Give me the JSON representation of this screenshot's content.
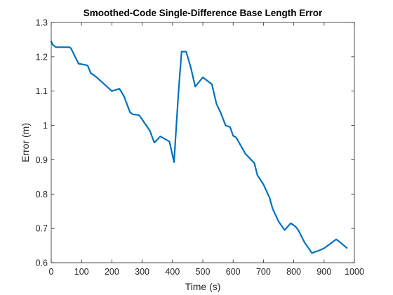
{
  "chart_data": {
    "type": "line",
    "title": "Smoothed-Code Single-Difference Base Length Error",
    "xlabel": "Time (s)",
    "ylabel": "Error (m)",
    "xlim": [
      0,
      1000
    ],
    "ylim": [
      0.6,
      1.3
    ],
    "xticks": [
      0,
      100,
      200,
      300,
      400,
      500,
      600,
      700,
      800,
      900,
      1000
    ],
    "yticks": [
      0.6,
      0.7,
      0.8,
      0.9,
      1.0,
      1.1,
      1.2,
      1.3
    ],
    "xtick_labels": [
      "0",
      "100",
      "200",
      "300",
      "400",
      "500",
      "600",
      "700",
      "800",
      "900",
      "1000"
    ],
    "ytick_labels": [
      "0.6",
      "0.7",
      "0.8",
      "0.9",
      "1",
      "1.1",
      "1.2",
      "1.3"
    ],
    "grid": false,
    "line_color": "#0072BD",
    "series": [
      {
        "x": [
          0,
          5,
          15,
          30,
          45,
          60,
          65,
          90,
          120,
          130,
          150,
          200,
          225,
          240,
          260,
          270,
          290,
          325,
          340,
          360,
          380,
          390,
          405,
          420,
          430,
          445,
          460,
          475,
          500,
          530,
          545,
          560,
          575,
          590,
          600,
          610,
          640,
          670,
          680,
          700,
          720,
          730,
          750,
          770,
          790,
          805,
          815,
          835,
          860,
          875,
          885,
          900,
          940,
          955,
          975
        ],
        "y": [
          1.245,
          1.235,
          1.228,
          1.228,
          1.228,
          1.228,
          1.225,
          1.18,
          1.175,
          1.153,
          1.14,
          1.1,
          1.107,
          1.085,
          1.038,
          1.032,
          1.03,
          0.985,
          0.95,
          0.968,
          0.958,
          0.953,
          0.893,
          1.1,
          1.215,
          1.215,
          1.17,
          1.113,
          1.14,
          1.12,
          1.063,
          1.035,
          1.0,
          0.995,
          0.97,
          0.965,
          0.918,
          0.89,
          0.855,
          0.828,
          0.79,
          0.758,
          0.72,
          0.695,
          0.715,
          0.706,
          0.695,
          0.66,
          0.628,
          0.633,
          0.636,
          0.642,
          0.668,
          0.658,
          0.643
        ]
      }
    ]
  }
}
